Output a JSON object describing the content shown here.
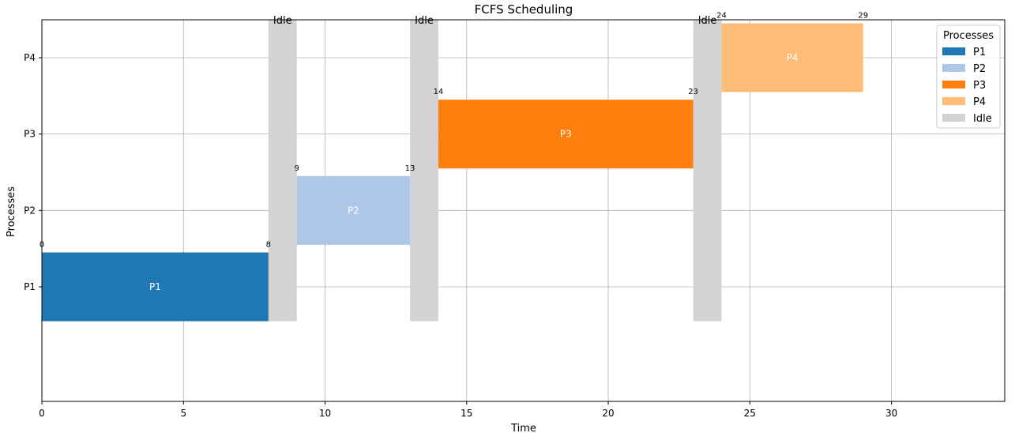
{
  "chart_data": {
    "type": "bar",
    "title": "FCFS Scheduling",
    "xlabel": "Time",
    "ylabel": "Processes",
    "xlim": [
      0,
      34
    ],
    "x_ticks": [
      0,
      5,
      10,
      15,
      20,
      25,
      30
    ],
    "categories": [
      "P1",
      "P2",
      "P3",
      "P4"
    ],
    "grid": true,
    "legend": {
      "title": "Processes",
      "placement": "top-right",
      "entries": [
        {
          "label": "P1",
          "color": "#1f77b4"
        },
        {
          "label": "P2",
          "color": "#aec7e8"
        },
        {
          "label": "P3",
          "color": "#ff7f0e"
        },
        {
          "label": "P4",
          "color": "#ffbb78"
        },
        {
          "label": "Idle",
          "color": "#d3d3d3"
        }
      ]
    },
    "tasks": [
      {
        "process": "P1",
        "start": 0,
        "end": 8,
        "label": "P1",
        "start_label": "0",
        "end_label": "8",
        "color": "#1f77b4"
      },
      {
        "process": "P2",
        "start": 9,
        "end": 13,
        "label": "P2",
        "start_label": "9",
        "end_label": "13",
        "color": "#aec7e8"
      },
      {
        "process": "P3",
        "start": 14,
        "end": 23,
        "label": "P3",
        "start_label": "14",
        "end_label": "23",
        "color": "#ff7f0e"
      },
      {
        "process": "P4",
        "start": 24,
        "end": 29,
        "label": "P4",
        "start_label": "24",
        "end_label": "29",
        "color": "#ffbb78"
      }
    ],
    "idle": [
      {
        "start": 8,
        "end": 9,
        "label": "Idle"
      },
      {
        "start": 13,
        "end": 14,
        "label": "Idle"
      },
      {
        "start": 23,
        "end": 24,
        "label": "Idle"
      }
    ],
    "idle_color": "#d3d3d3"
  }
}
